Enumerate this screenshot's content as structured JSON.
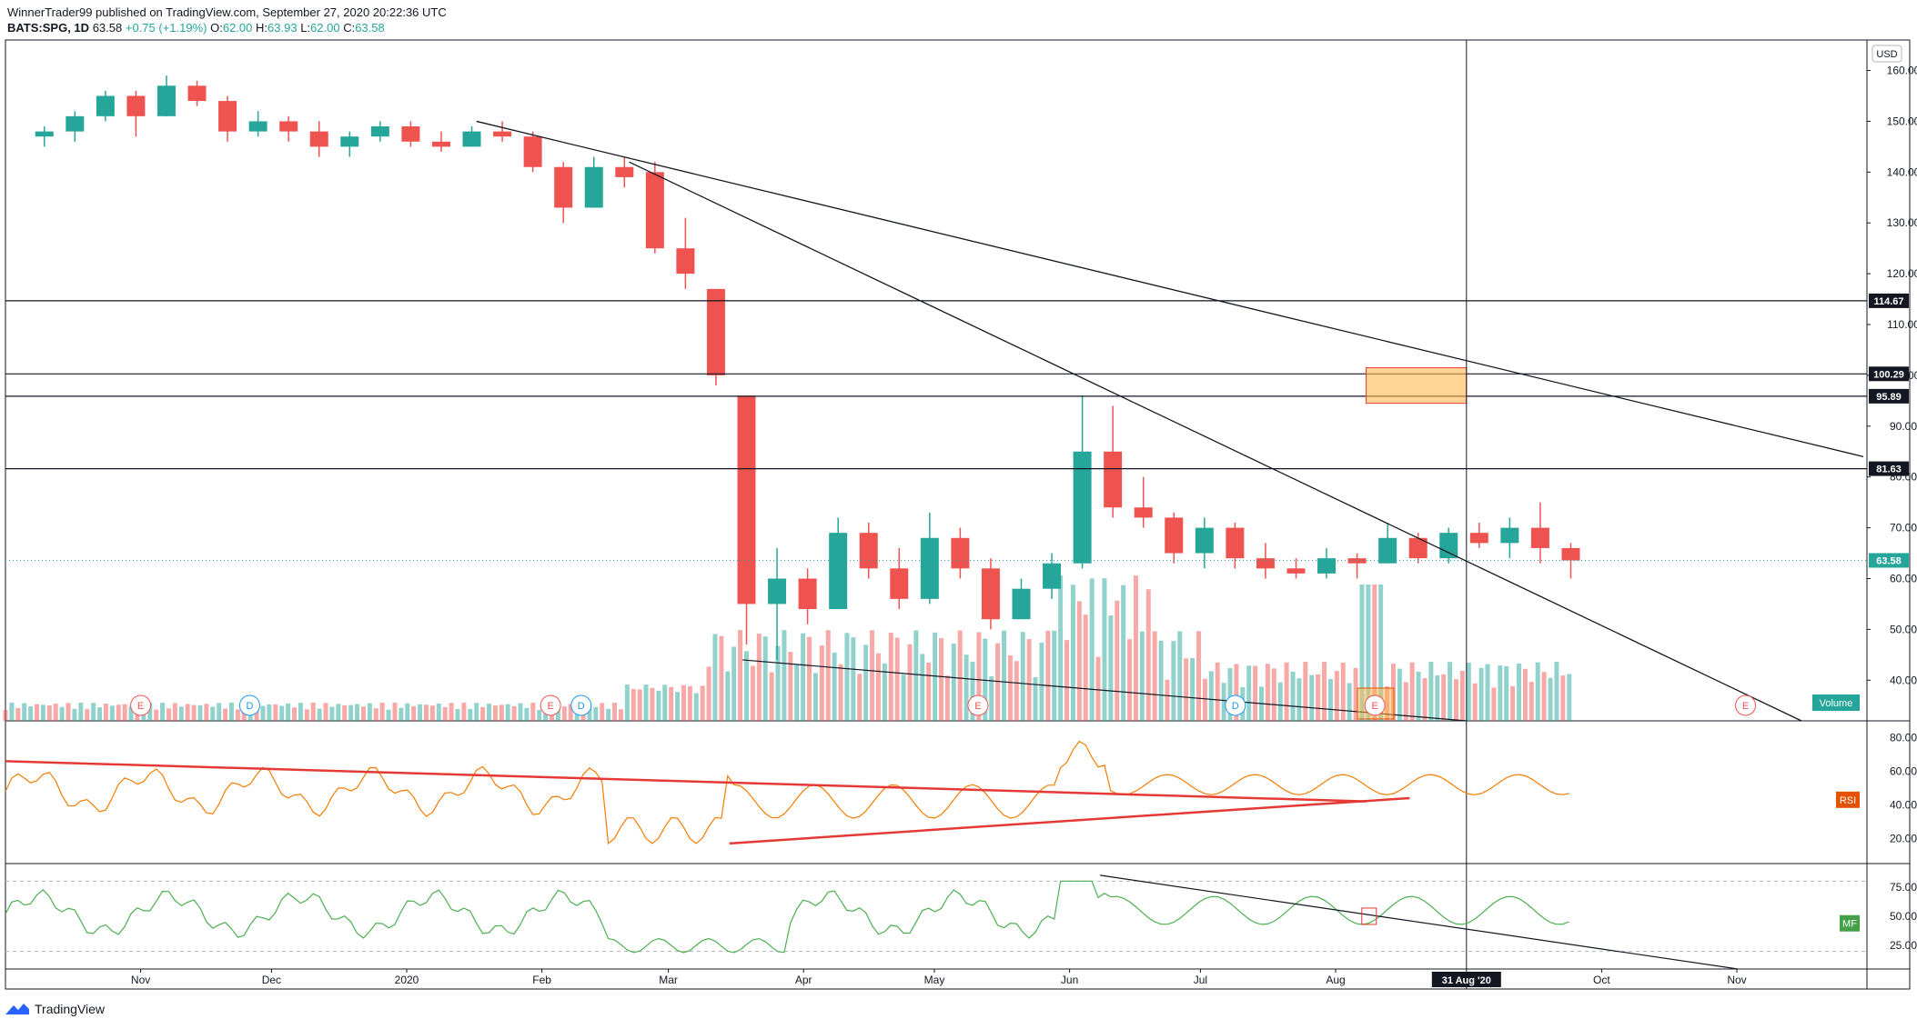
{
  "header": {
    "published_line": "WinnerTrader99 published on TradingView.com, September 27, 2020 20:22:36 UTC",
    "symbol": "BATS:SPG, 1D",
    "last": "63.58",
    "change": "+0.75 (+1.19%)",
    "ohlc_o_label": "O:",
    "ohlc_o": "62.00",
    "ohlc_h_label": "H:",
    "ohlc_h": "63.93",
    "ohlc_l_label": "L:",
    "ohlc_l": "62.00",
    "ohlc_c_label": "C:",
    "ohlc_c": "63.58"
  },
  "footer": {
    "brand": "TradingView"
  },
  "colors": {
    "up": "#26a69a",
    "down": "#ef5350",
    "rsi": "#f57c00",
    "mf": "#4caf50",
    "trend": "#e53935",
    "zone": "#ffb74d"
  },
  "chart_data": {
    "type": "candlestick",
    "currency_label": "USD",
    "price_ticks": [
      "160.00",
      "150.00",
      "140.00",
      "130.00",
      "120.00",
      "110.00",
      "100.00",
      "90.00",
      "80.00",
      "70.00",
      "60.00",
      "50.00",
      "40.00"
    ],
    "price_tick_values": [
      160,
      150,
      140,
      130,
      120,
      110,
      100,
      90,
      80,
      70,
      60,
      50,
      40
    ],
    "ylim": [
      32,
      166
    ],
    "price_lines": [
      {
        "value": 114.67,
        "label": "114.67"
      },
      {
        "value": 100.29,
        "label": "100.29"
      },
      {
        "value": 95.89,
        "label": "95.89"
      },
      {
        "value": 81.63,
        "label": "81.63"
      }
    ],
    "last_price": {
      "value": 63.58,
      "label": "63.58"
    },
    "month_labels": [
      "Nov",
      "Dec",
      "2020",
      "Feb",
      "Mar",
      "Apr",
      "May",
      "Jun",
      "Jul",
      "Aug",
      "Oct",
      "Nov"
    ],
    "crosshair_label": "31 Aug '20",
    "volume_label": "Volume",
    "rsi_label": "RSI",
    "rsi_ticks": [
      "80.00",
      "60.00",
      "40.00",
      "20.00"
    ],
    "rsi_tick_values": [
      80,
      60,
      40,
      20
    ],
    "mf_label": "MF",
    "mf_ticks": [
      "75.00",
      "50.00",
      "25.00"
    ],
    "mf_tick_values": [
      75,
      50,
      25
    ],
    "events": [
      {
        "type": "E",
        "date": "2019-11-01"
      },
      {
        "type": "D",
        "date": "2019-11-26"
      },
      {
        "type": "E",
        "date": "2020-02-03"
      },
      {
        "type": "D",
        "date": "2020-02-10"
      },
      {
        "type": "E",
        "date": "2020-05-11"
      },
      {
        "type": "D",
        "date": "2020-07-09"
      },
      {
        "type": "E",
        "date": "2020-08-10"
      },
      {
        "type": "E",
        "date": "2020-11-03"
      }
    ],
    "candles_weekly_approx": [
      {
        "date": "2019-10-07",
        "o": 147,
        "h": 149,
        "l": 145,
        "c": 148
      },
      {
        "date": "2019-10-14",
        "o": 148,
        "h": 152,
        "l": 146,
        "c": 151
      },
      {
        "date": "2019-10-21",
        "o": 151,
        "h": 156,
        "l": 150,
        "c": 155
      },
      {
        "date": "2019-10-28",
        "o": 155,
        "h": 156,
        "l": 147,
        "c": 151
      },
      {
        "date": "2019-11-04",
        "o": 151,
        "h": 159,
        "l": 151,
        "c": 157
      },
      {
        "date": "2019-11-11",
        "o": 157,
        "h": 158,
        "l": 153,
        "c": 154
      },
      {
        "date": "2019-11-18",
        "o": 154,
        "h": 155,
        "l": 146,
        "c": 148
      },
      {
        "date": "2019-11-25",
        "o": 148,
        "h": 152,
        "l": 147,
        "c": 150
      },
      {
        "date": "2019-12-02",
        "o": 150,
        "h": 151,
        "l": 146,
        "c": 148
      },
      {
        "date": "2019-12-09",
        "o": 148,
        "h": 150,
        "l": 143,
        "c": 145
      },
      {
        "date": "2019-12-16",
        "o": 145,
        "h": 148,
        "l": 143,
        "c": 147
      },
      {
        "date": "2019-12-23",
        "o": 147,
        "h": 150,
        "l": 146,
        "c": 149
      },
      {
        "date": "2019-12-30",
        "o": 149,
        "h": 150,
        "l": 145,
        "c": 146
      },
      {
        "date": "2020-01-06",
        "o": 146,
        "h": 148,
        "l": 144,
        "c": 145
      },
      {
        "date": "2020-01-13",
        "o": 145,
        "h": 149,
        "l": 145,
        "c": 148
      },
      {
        "date": "2020-01-20",
        "o": 148,
        "h": 150,
        "l": 146,
        "c": 147
      },
      {
        "date": "2020-01-27",
        "o": 147,
        "h": 148,
        "l": 140,
        "c": 141
      },
      {
        "date": "2020-02-03",
        "o": 141,
        "h": 142,
        "l": 130,
        "c": 133
      },
      {
        "date": "2020-02-10",
        "o": 133,
        "h": 143,
        "l": 133,
        "c": 141
      },
      {
        "date": "2020-02-17",
        "o": 141,
        "h": 143,
        "l": 137,
        "c": 139
      },
      {
        "date": "2020-02-24",
        "o": 140,
        "h": 142,
        "l": 124,
        "c": 125
      },
      {
        "date": "2020-03-02",
        "o": 125,
        "h": 131,
        "l": 117,
        "c": 120
      },
      {
        "date": "2020-03-09",
        "o": 117,
        "h": 112,
        "l": 98,
        "c": 100
      },
      {
        "date": "2020-03-16",
        "o": 96,
        "h": 96,
        "l": 47,
        "c": 55
      },
      {
        "date": "2020-03-23",
        "o": 55,
        "h": 66,
        "l": 44,
        "c": 60
      },
      {
        "date": "2020-03-30",
        "o": 60,
        "h": 62,
        "l": 51,
        "c": 54
      },
      {
        "date": "2020-04-06",
        "o": 54,
        "h": 72,
        "l": 54,
        "c": 69
      },
      {
        "date": "2020-04-13",
        "o": 69,
        "h": 71,
        "l": 60,
        "c": 62
      },
      {
        "date": "2020-04-20",
        "o": 62,
        "h": 66,
        "l": 54,
        "c": 56
      },
      {
        "date": "2020-04-27",
        "o": 56,
        "h": 73,
        "l": 55,
        "c": 68
      },
      {
        "date": "2020-05-04",
        "o": 68,
        "h": 70,
        "l": 60,
        "c": 62
      },
      {
        "date": "2020-05-11",
        "o": 62,
        "h": 64,
        "l": 50,
        "c": 52
      },
      {
        "date": "2020-05-18",
        "o": 52,
        "h": 60,
        "l": 52,
        "c": 58
      },
      {
        "date": "2020-05-25",
        "o": 58,
        "h": 65,
        "l": 56,
        "c": 63
      },
      {
        "date": "2020-06-01",
        "o": 63,
        "h": 96,
        "l": 62,
        "c": 85
      },
      {
        "date": "2020-06-08",
        "o": 85,
        "h": 94,
        "l": 72,
        "c": 74
      },
      {
        "date": "2020-06-15",
        "o": 74,
        "h": 80,
        "l": 70,
        "c": 72
      },
      {
        "date": "2020-06-22",
        "o": 72,
        "h": 73,
        "l": 63,
        "c": 65
      },
      {
        "date": "2020-06-29",
        "o": 65,
        "h": 72,
        "l": 62,
        "c": 70
      },
      {
        "date": "2020-07-06",
        "o": 70,
        "h": 71,
        "l": 62,
        "c": 64
      },
      {
        "date": "2020-07-13",
        "o": 64,
        "h": 67,
        "l": 60,
        "c": 62
      },
      {
        "date": "2020-07-20",
        "o": 62,
        "h": 64,
        "l": 60,
        "c": 61
      },
      {
        "date": "2020-07-27",
        "o": 61,
        "h": 66,
        "l": 60,
        "c": 64
      },
      {
        "date": "2020-08-03",
        "o": 64,
        "h": 65,
        "l": 60,
        "c": 63
      },
      {
        "date": "2020-08-10",
        "o": 63,
        "h": 71,
        "l": 63,
        "c": 68
      },
      {
        "date": "2020-08-17",
        "o": 68,
        "h": 69,
        "l": 63,
        "c": 64
      },
      {
        "date": "2020-08-24",
        "o": 64,
        "h": 70,
        "l": 63,
        "c": 69
      },
      {
        "date": "2020-08-31",
        "o": 69,
        "h": 71,
        "l": 66,
        "c": 67
      },
      {
        "date": "2020-09-07",
        "o": 67,
        "h": 72,
        "l": 64,
        "c": 70
      },
      {
        "date": "2020-09-14",
        "o": 70,
        "h": 75,
        "l": 63,
        "c": 66
      },
      {
        "date": "2020-09-21",
        "o": 66,
        "h": 67,
        "l": 60,
        "c": 63.58
      }
    ]
  }
}
